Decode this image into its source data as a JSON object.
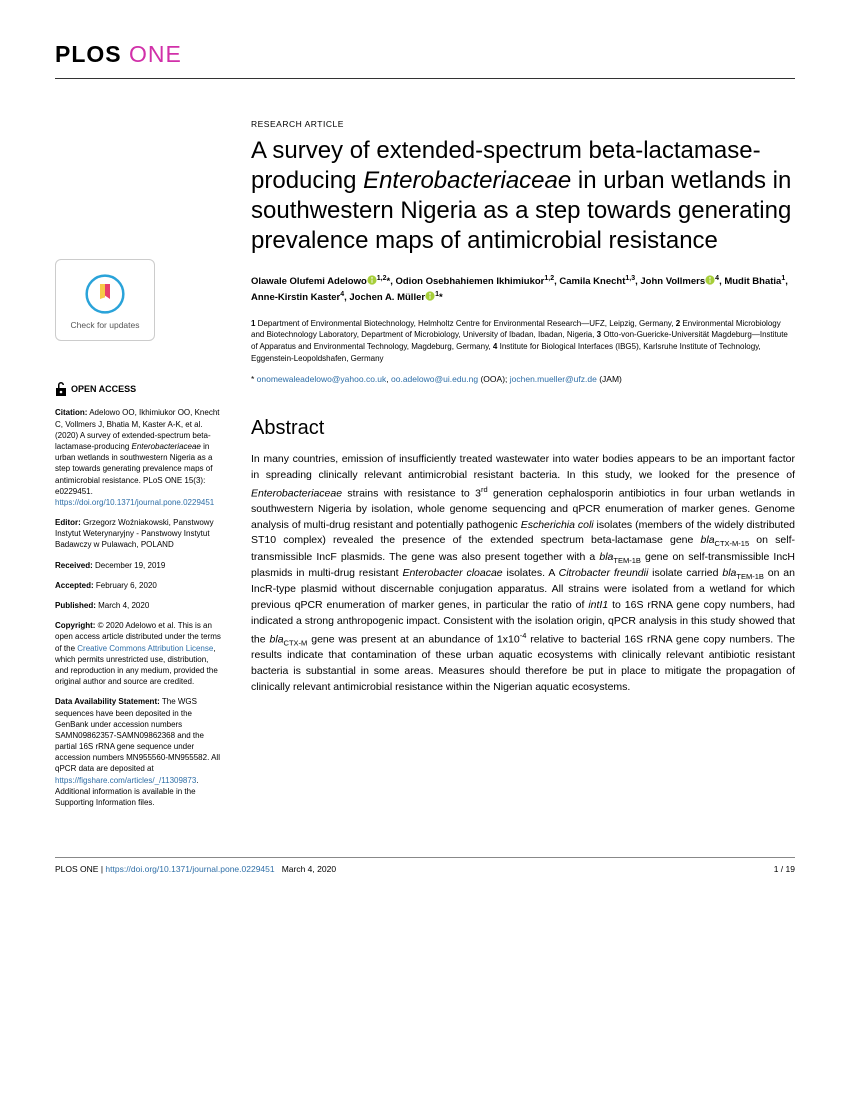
{
  "journal": {
    "name_a": "PLOS",
    "name_b": "ONE"
  },
  "article": {
    "type": "RESEARCH ARTICLE",
    "title_html": "A survey of extended-spectrum beta-lactamase-producing <span class='italic'>Enterobacteriaceae</span> in urban wetlands in southwestern Nigeria as a step towards generating prevalence maps of antimicrobial resistance"
  },
  "authors_html": "Olawale Olufemi Adelowo<span class='orcid'><svg viewBox='0 0 24 24'><circle cx='12' cy='12' r='11' fill='#A6CE39'/><path d='M12 5a2 2 0 100 4 2 2 0 000-4zm-1 6h2v8h-2z' fill='#fff'/></svg></span><sup>1,2</sup>*, Odion Osebhahiemen Ikhimiukor<sup>1,2</sup>, Camila Knecht<sup>1,3</sup>, John Vollmers<span class='orcid'><svg viewBox='0 0 24 24'><circle cx='12' cy='12' r='11' fill='#A6CE39'/><path d='M12 5a2 2 0 100 4 2 2 0 000-4zm-1 6h2v8h-2z' fill='#fff'/></svg></span><sup>4</sup>, Mudit Bhatia<sup>1</sup>, Anne-Kirstin Kaster<sup>4</sup>, Jochen A. Müller<span class='orcid'><svg viewBox='0 0 24 24'><circle cx='12' cy='12' r='11' fill='#A6CE39'/><path d='M12 5a2 2 0 100 4 2 2 0 000-4zm-1 6h2v8h-2z' fill='#fff'/></svg></span><sup>1</sup>*",
  "affiliations_html": "<span class='num'>1</span> Department of Environmental Biotechnology, Helmholtz Centre for Environmental Research—UFZ, Leipzig, Germany, <span class='num'>2</span> Environmental Microbiology and Biotechnology Laboratory, Department of Microbiology, University of Ibadan, Ibadan, Nigeria, <span class='num'>3</span> Otto-von-Guericke-Universität Magdeburg—Institute of Apparatus and Environmental Technology, Magdeburg, Germany, <span class='num'>4</span> Institute for Biological Interfaces (IBG5), Karlsruhe Institute of Technology, Eggenstein-Leopoldshafen, Germany",
  "correspondence_html": "* <a href='#'>onomewaleadelowo@yahoo.co.uk</a>, <a href='#'>oo.adelowo@ui.edu.ng</a> (OOA); <a href='#'>jochen.mueller@ufz.de</a> (JAM)",
  "check_updates": "Check for updates",
  "open_access": "OPEN ACCESS",
  "sidebar": {
    "citation_label": "Citation:",
    "citation_html": "Adelowo OO, Ikhimiukor OO, Knecht C, Vollmers J, Bhatia M, Kaster A-K, et al. (2020) A survey of extended-spectrum beta-lactamase-producing <span class='italic'>Enterobacteriaceae</span> in urban wetlands in southwestern Nigeria as a step towards generating prevalence maps of antimicrobial resistance. PLoS ONE 15(3): e0229451. <a href='#'>https://doi.org/10.1371/journal.pone.0229451</a>",
    "editor_label": "Editor:",
    "editor_text": "Grzegorz Woźniakowski, Panstwowy Instytut Weterynaryjny - Panstwowy Instytut Badawczy w Pulawach, POLAND",
    "received_label": "Received:",
    "received_text": "December 19, 2019",
    "accepted_label": "Accepted:",
    "accepted_text": "February 6, 2020",
    "published_label": "Published:",
    "published_text": "March 4, 2020",
    "copyright_label": "Copyright:",
    "copyright_html": "© 2020 Adelowo et al. This is an open access article distributed under the terms of the <a href='#'>Creative Commons Attribution License</a>, which permits unrestricted use, distribution, and reproduction in any medium, provided the original author and source are credited.",
    "data_label": "Data Availability Statement:",
    "data_html": "The WGS sequences have been deposited in the GenBank under accession numbers SAMN09862357-SAMN09862368 and the partial 16S rRNA gene sequence under accession numbers MN955560-MN955582. All qPCR data are deposited at <a href='#'>https://figshare.com/articles/_/11309873</a>. Additional information is available in the Supporting Information files."
  },
  "abstract": {
    "heading": "Abstract",
    "body_html": "In many countries, emission of insufficiently treated wastewater into water bodies appears to be an important factor in spreading clinically relevant antimicrobial resistant bacteria. In this study, we looked for the presence of <span class='italic'>Enterobacteriaceae</span> strains with resistance to 3<sup>rd</sup> generation cephalosporin antibiotics in four urban wetlands in southwestern Nigeria by isolation, whole genome sequencing and qPCR enumeration of marker genes. Genome analysis of multi-drug resistant and potentially pathogenic <span class='italic'>Escherichia coli</span> isolates (members of the widely distributed ST10 complex) revealed the presence of the extended spectrum beta-lactamase gene <span class='italic'>bla</span><sub>CTX-M-15</sub> on self-transmissible IncF plasmids. The gene was also present together with a <span class='italic'>bla</span><sub>TEM-1B</sub> gene on self-transmissible IncH plasmids in multi-drug resistant <span class='italic'>Enterobacter cloacae</span> isolates. A <span class='italic'>Citrobacter freundii</span> isolate carried <span class='italic'>bla</span><sub>TEM-1B</sub> on an IncR-type plasmid without discernable conjugation apparatus. All strains were isolated from a wetland for which previous qPCR enumeration of marker genes, in particular the ratio of <span class='italic'>intI1</span> to 16S rRNA gene copy numbers, had indicated a strong anthropogenic impact. Consistent with the isolation origin, qPCR analysis in this study showed that the <span class='italic'>bla</span><sub>CTX-M</sub> gene was present at an abundance of 1x10<sup>-4</sup> relative to bacterial 16S rRNA gene copy numbers. The results indicate that contamination of these urban aquatic ecosystems with clinically relevant antibiotic resistant bacteria is substantial in some areas. Measures should therefore be put in place to mitigate the propagation of clinically relevant antimicrobial resistance within the Nigerian aquatic ecosystems."
  },
  "footer": {
    "journal": "PLOS ONE",
    "doi": "https://doi.org/10.1371/journal.pone.0229451",
    "date": "March 4, 2020",
    "page": "1 / 19"
  }
}
